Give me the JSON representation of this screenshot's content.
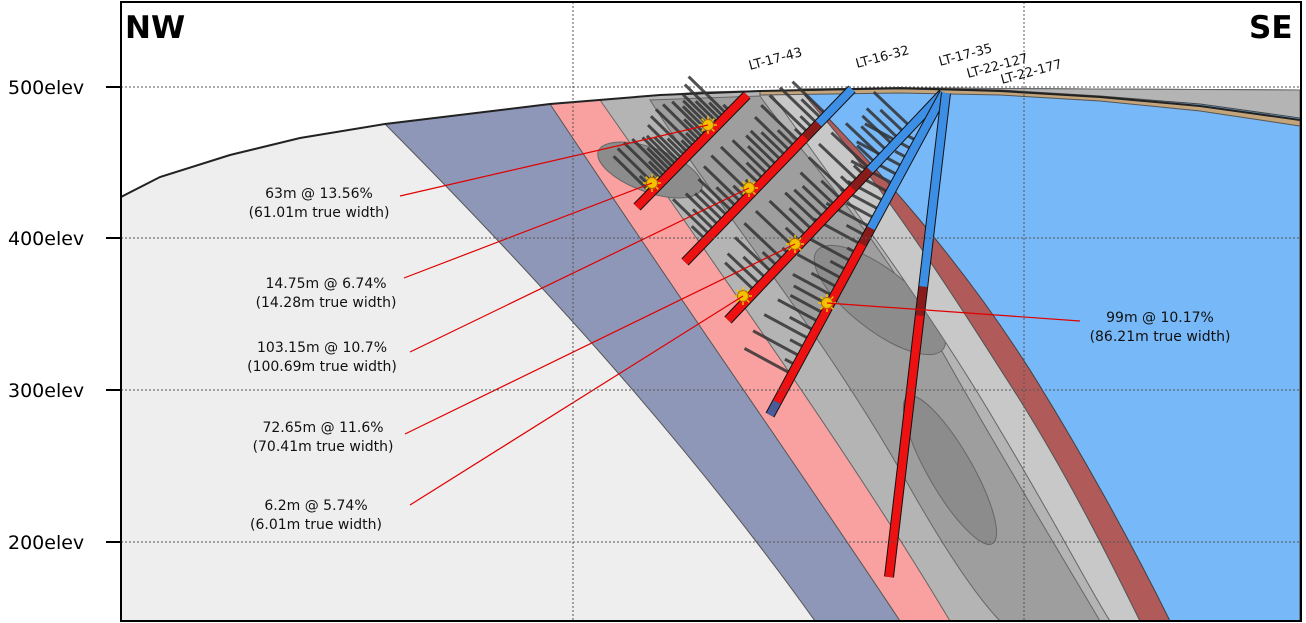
{
  "section": {
    "left_direction": "NW",
    "right_direction": "SE"
  },
  "elevations": [
    "500elev",
    "400elev",
    "300elev",
    "200elev"
  ],
  "drill_holes": [
    {
      "name": "LT-17-43"
    },
    {
      "name": "LT-16-32"
    },
    {
      "name": "LT-17-35"
    },
    {
      "name": "LT-22-127"
    },
    {
      "name": "LT-22-177"
    }
  ],
  "intercepts": [
    {
      "line1": "63m @ 13.56%",
      "line2": "(61.01m true width)"
    },
    {
      "line1": "14.75m @ 6.74%",
      "line2": "(14.28m true width)"
    },
    {
      "line1": "103.15m @ 10.7%",
      "line2": "(100.69m true width)"
    },
    {
      "line1": "72.65m @ 11.6%",
      "line2": "(70.41m true width)"
    },
    {
      "line1": "6.2m @ 5.74%",
      "line2": "(6.01m true width)"
    },
    {
      "line1": "99m @ 10.17%",
      "line2": "(86.21m true width)"
    }
  ],
  "colors": {
    "host_rock_left": "#eeeeee",
    "blue_slate_unit": "#8f97b8",
    "pink_halo": "#f9a0a0",
    "mineralized_zone": "#a9a9a9",
    "dark_red_halo": "#b05a5a",
    "right_unit": "#77b8f8",
    "overburden": "#c4a47a",
    "high_grade_hole": "#ee1111",
    "low_grade_hole": "#3d8fe6",
    "annotation_line": "#e00000",
    "intercept_marker": "#f5c000"
  }
}
